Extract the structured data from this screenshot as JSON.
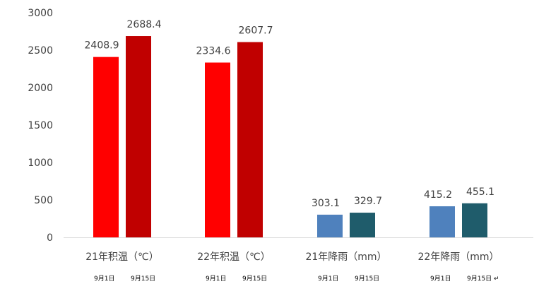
{
  "chart_data": {
    "type": "bar",
    "categories": [
      "21年积温（℃）",
      "22年积温（℃）",
      "21年降雨（mm）",
      "22年降雨（mm）"
    ],
    "sublabels": [
      [
        "9月1日",
        "9月15日"
      ],
      [
        "9月1日",
        "9月15日"
      ],
      [
        "9月1日",
        "9月15日"
      ],
      [
        "9月1日",
        "9月15日 ↵"
      ]
    ],
    "values": [
      [
        2408.9,
        2688.4
      ],
      [
        2334.6,
        2607.7
      ],
      [
        303.1,
        329.7
      ],
      [
        415.2,
        455.1
      ]
    ],
    "value_labels": [
      [
        "2408.9",
        "2688.4"
      ],
      [
        "2334.6",
        "2607.7"
      ],
      [
        "303.1",
        "329.7"
      ],
      [
        "415.2",
        "455.1"
      ]
    ],
    "bar_colors": [
      [
        "#ff0000",
        "#c00000"
      ],
      [
        "#ff0000",
        "#c00000"
      ],
      [
        "#4f81bd",
        "#1f5c6b"
      ],
      [
        "#4f81bd",
        "#1f5c6b"
      ]
    ],
    "yticks": [
      0,
      500,
      1000,
      1500,
      2000,
      2500,
      3000
    ],
    "ytick_labels": [
      "0",
      "500",
      "1000",
      "1500",
      "2000",
      "2500",
      "3000"
    ],
    "ylim": [
      0,
      3000
    ],
    "title": "",
    "xlabel": "",
    "ylabel": "",
    "grid": false,
    "legend": "none"
  }
}
